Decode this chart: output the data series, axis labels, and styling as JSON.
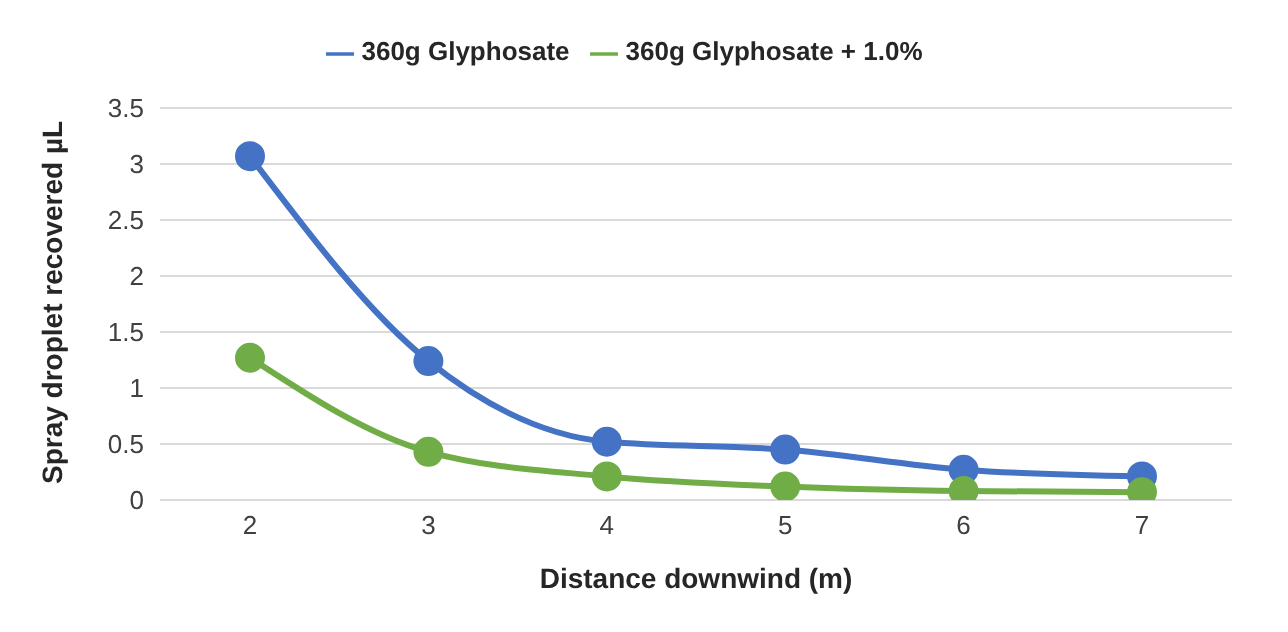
{
  "chart_data": {
    "type": "line",
    "xlabel": "Distance downwind (m)",
    "ylabel": "Spray droplet recovered  µL",
    "categories": [
      "2",
      "3",
      "4",
      "5",
      "6",
      "7"
    ],
    "series": [
      {
        "name": "360g Glyphosate",
        "color": "#4472c4",
        "values": [
          3.07,
          1.24,
          0.52,
          0.45,
          0.27,
          0.21
        ]
      },
      {
        "name": "360g Glyphosate + 1.0%",
        "color": "#70ad47",
        "values": [
          1.27,
          0.43,
          0.21,
          0.12,
          0.08,
          0.07
        ]
      }
    ],
    "ylim": [
      0,
      3.5
    ],
    "yticks": [
      0,
      0.5,
      1,
      1.5,
      2,
      2.5,
      3,
      3.5
    ],
    "grid": "y",
    "legend": "top",
    "marker": "circle",
    "line_style": "solid"
  }
}
